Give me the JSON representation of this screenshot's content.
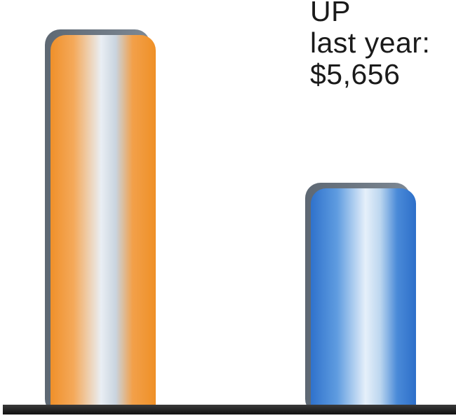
{
  "chart_data": {
    "type": "bar",
    "categories": [
      "",
      ""
    ],
    "values": [
      5656,
      3370
    ],
    "ylim": [
      0,
      6000
    ],
    "grid": false,
    "colors": [
      "#f39a35",
      "#3a7fd2"
    ],
    "annotation": {
      "lines": [
        "UP",
        "last year:",
        "$5,656"
      ]
    }
  },
  "colors": {
    "bar_orange": "#f39a35",
    "bar_blue": "#3a7fd2",
    "bar_side": "#6b7683",
    "baseline": "#222222"
  }
}
